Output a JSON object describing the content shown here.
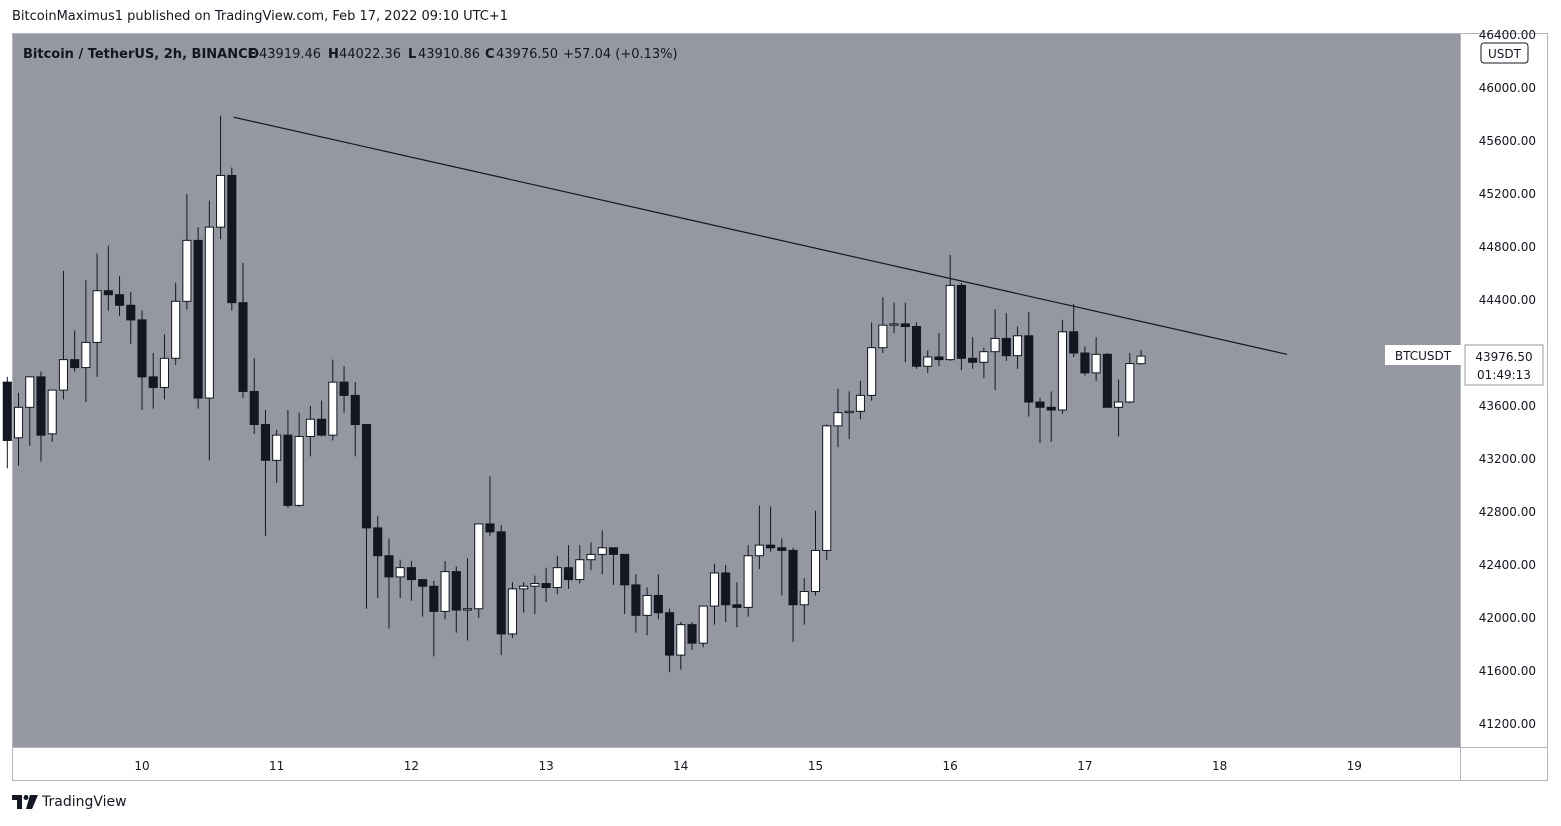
{
  "header": {
    "published_line": "BitcoinMaximus1 published on TradingView.com, Feb 17, 2022 09:10 UTC+1"
  },
  "legend": {
    "symbol": "Bitcoin / TetherUS, 2h, BINANCE",
    "o_label": "O",
    "o_value": "43919.46",
    "h_label": "H",
    "h_value": "44022.36",
    "l_label": "L",
    "l_value": "43910.86",
    "c_label": "C",
    "c_value": "43976.50",
    "change": "+57.04 (+0.13%)"
  },
  "price_axis": {
    "currency": "USDT",
    "labels": [
      "46400.00",
      "46000.00",
      "45600.00",
      "45200.00",
      "44800.00",
      "44400.00",
      "44000.00",
      "43600.00",
      "43200.00",
      "42800.00",
      "42400.00",
      "42000.00",
      "41600.00",
      "41200.00"
    ]
  },
  "ticker_tag": {
    "name": "BTCUSDT",
    "price": "43976.50",
    "countdown": "01:49:13"
  },
  "time_axis": {
    "labels": [
      "10",
      "11",
      "12",
      "13",
      "14",
      "15",
      "16",
      "17",
      "18",
      "19"
    ]
  },
  "footer": {
    "brand": "TradingView"
  },
  "colors": {
    "plot_background": "#9598a1",
    "up_candle": "#ffffff",
    "down_candle": "#131722",
    "trendline": "#131722",
    "axis_background": "#ffffff",
    "border": "#b2b5be"
  },
  "chart_data": {
    "type": "candlestick",
    "title": "Bitcoin / TetherUS, 2h, BINANCE",
    "ylim": [
      41000,
      46400
    ],
    "y_ticks": [
      46400,
      46000,
      45600,
      45200,
      44800,
      44400,
      44000,
      43600,
      43200,
      42800,
      42400,
      42000,
      41600,
      41200
    ],
    "x_ticks": [
      "10",
      "11",
      "12",
      "13",
      "14",
      "15",
      "16",
      "17",
      "18",
      "19"
    ],
    "start_day": 9.0,
    "bar_hours": 2,
    "candles": [
      {
        "o": 43780,
        "h": 43820,
        "l": 43130,
        "c": 43340
      },
      {
        "o": 43360,
        "h": 43700,
        "l": 43150,
        "c": 43590
      },
      {
        "o": 43590,
        "h": 43800,
        "l": 43300,
        "c": 43820
      },
      {
        "o": 43820,
        "h": 43860,
        "l": 43180,
        "c": 43380
      },
      {
        "o": 43390,
        "h": 43720,
        "l": 43330,
        "c": 43720
      },
      {
        "o": 43720,
        "h": 44620,
        "l": 43650,
        "c": 43950
      },
      {
        "o": 43950,
        "h": 44170,
        "l": 43860,
        "c": 43890
      },
      {
        "o": 43890,
        "h": 44550,
        "l": 43630,
        "c": 44080
      },
      {
        "o": 44080,
        "h": 44750,
        "l": 43820,
        "c": 44470
      },
      {
        "o": 44470,
        "h": 44810,
        "l": 44320,
        "c": 44440
      },
      {
        "o": 44440,
        "h": 44580,
        "l": 44280,
        "c": 44360
      },
      {
        "o": 44360,
        "h": 44460,
        "l": 44070,
        "c": 44250
      },
      {
        "o": 44250,
        "h": 44320,
        "l": 43570,
        "c": 43820
      },
      {
        "o": 43820,
        "h": 44000,
        "l": 43580,
        "c": 43740
      },
      {
        "o": 43740,
        "h": 44140,
        "l": 43650,
        "c": 43960
      },
      {
        "o": 43960,
        "h": 44530,
        "l": 43910,
        "c": 44390
      },
      {
        "o": 44390,
        "h": 45200,
        "l": 44330,
        "c": 44850
      },
      {
        "o": 44850,
        "h": 44950,
        "l": 43580,
        "c": 43660
      },
      {
        "o": 43660,
        "h": 45150,
        "l": 43190,
        "c": 44950
      },
      {
        "o": 44950,
        "h": 45790,
        "l": 44860,
        "c": 45340
      },
      {
        "o": 45340,
        "h": 45400,
        "l": 44320,
        "c": 44380
      },
      {
        "o": 44380,
        "h": 44680,
        "l": 43660,
        "c": 43710
      },
      {
        "o": 43710,
        "h": 43960,
        "l": 43390,
        "c": 43460
      },
      {
        "o": 43460,
        "h": 43570,
        "l": 42620,
        "c": 43190
      },
      {
        "o": 43190,
        "h": 43420,
        "l": 43020,
        "c": 43380
      },
      {
        "o": 43380,
        "h": 43570,
        "l": 42830,
        "c": 42850
      },
      {
        "o": 42850,
        "h": 43550,
        "l": 42840,
        "c": 43370
      },
      {
        "o": 43370,
        "h": 43600,
        "l": 43220,
        "c": 43500
      },
      {
        "o": 43500,
        "h": 43640,
        "l": 43370,
        "c": 43380
      },
      {
        "o": 43380,
        "h": 43950,
        "l": 43340,
        "c": 43780
      },
      {
        "o": 43780,
        "h": 43900,
        "l": 43550,
        "c": 43680
      },
      {
        "o": 43680,
        "h": 43780,
        "l": 43220,
        "c": 43460
      },
      {
        "o": 43460,
        "h": 43460,
        "l": 42070,
        "c": 42680
      },
      {
        "o": 42680,
        "h": 42770,
        "l": 42150,
        "c": 42470
      },
      {
        "o": 42470,
        "h": 42600,
        "l": 41920,
        "c": 42310
      },
      {
        "o": 42310,
        "h": 42440,
        "l": 42150,
        "c": 42380
      },
      {
        "o": 42380,
        "h": 42430,
        "l": 42130,
        "c": 42290
      },
      {
        "o": 42290,
        "h": 42290,
        "l": 42010,
        "c": 42240
      },
      {
        "o": 42240,
        "h": 42280,
        "l": 41710,
        "c": 42050
      },
      {
        "o": 42050,
        "h": 42430,
        "l": 41990,
        "c": 42350
      },
      {
        "o": 42350,
        "h": 42390,
        "l": 41890,
        "c": 42060
      },
      {
        "o": 42060,
        "h": 42450,
        "l": 41830,
        "c": 42070
      },
      {
        "o": 42070,
        "h": 42710,
        "l": 42000,
        "c": 42710
      },
      {
        "o": 42710,
        "h": 43070,
        "l": 42620,
        "c": 42650
      },
      {
        "o": 42650,
        "h": 42700,
        "l": 41720,
        "c": 41880
      },
      {
        "o": 41880,
        "h": 42270,
        "l": 41850,
        "c": 42220
      },
      {
        "o": 42220,
        "h": 42270,
        "l": 42040,
        "c": 42240
      },
      {
        "o": 42240,
        "h": 42320,
        "l": 42030,
        "c": 42260
      },
      {
        "o": 42260,
        "h": 42380,
        "l": 42120,
        "c": 42230
      },
      {
        "o": 42230,
        "h": 42470,
        "l": 42180,
        "c": 42380
      },
      {
        "o": 42380,
        "h": 42550,
        "l": 42220,
        "c": 42290
      },
      {
        "o": 42290,
        "h": 42550,
        "l": 42260,
        "c": 42440
      },
      {
        "o": 42440,
        "h": 42570,
        "l": 42360,
        "c": 42480
      },
      {
        "o": 42480,
        "h": 42660,
        "l": 42330,
        "c": 42530
      },
      {
        "o": 42530,
        "h": 42520,
        "l": 42250,
        "c": 42480
      },
      {
        "o": 42480,
        "h": 42480,
        "l": 42030,
        "c": 42250
      },
      {
        "o": 42250,
        "h": 42330,
        "l": 41890,
        "c": 42020
      },
      {
        "o": 42020,
        "h": 42230,
        "l": 41870,
        "c": 42170
      },
      {
        "o": 42170,
        "h": 42330,
        "l": 41990,
        "c": 42040
      },
      {
        "o": 42040,
        "h": 42070,
        "l": 41590,
        "c": 41720
      },
      {
        "o": 41720,
        "h": 41970,
        "l": 41610,
        "c": 41950
      },
      {
        "o": 41950,
        "h": 41970,
        "l": 41760,
        "c": 41810
      },
      {
        "o": 41810,
        "h": 42090,
        "l": 41780,
        "c": 42090
      },
      {
        "o": 42090,
        "h": 42410,
        "l": 41950,
        "c": 42340
      },
      {
        "o": 42340,
        "h": 42400,
        "l": 41970,
        "c": 42100
      },
      {
        "o": 42100,
        "h": 42270,
        "l": 41930,
        "c": 42080
      },
      {
        "o": 42080,
        "h": 42550,
        "l": 42010,
        "c": 42470
      },
      {
        "o": 42470,
        "h": 42850,
        "l": 42370,
        "c": 42550
      },
      {
        "o": 42550,
        "h": 42840,
        "l": 42500,
        "c": 42530
      },
      {
        "o": 42530,
        "h": 42600,
        "l": 42170,
        "c": 42510
      },
      {
        "o": 42510,
        "h": 42530,
        "l": 41820,
        "c": 42100
      },
      {
        "o": 42100,
        "h": 42300,
        "l": 41950,
        "c": 42200
      },
      {
        "o": 42200,
        "h": 42810,
        "l": 42170,
        "c": 42510
      },
      {
        "o": 42510,
        "h": 43460,
        "l": 42440,
        "c": 43450
      },
      {
        "o": 43450,
        "h": 43730,
        "l": 43290,
        "c": 43550
      },
      {
        "o": 43550,
        "h": 43710,
        "l": 43350,
        "c": 43560
      },
      {
        "o": 43560,
        "h": 43790,
        "l": 43500,
        "c": 43680
      },
      {
        "o": 43680,
        "h": 44230,
        "l": 43640,
        "c": 44040
      },
      {
        "o": 44040,
        "h": 44420,
        "l": 44000,
        "c": 44210
      },
      {
        "o": 44210,
        "h": 44380,
        "l": 44150,
        "c": 44220
      },
      {
        "o": 44220,
        "h": 44380,
        "l": 43930,
        "c": 44200
      },
      {
        "o": 44200,
        "h": 44230,
        "l": 43880,
        "c": 43900
      },
      {
        "o": 43900,
        "h": 44020,
        "l": 43850,
        "c": 43970
      },
      {
        "o": 43970,
        "h": 44150,
        "l": 43900,
        "c": 43950
      },
      {
        "o": 43950,
        "h": 44740,
        "l": 43940,
        "c": 44510
      },
      {
        "o": 44510,
        "h": 44530,
        "l": 43870,
        "c": 43960
      },
      {
        "o": 43960,
        "h": 44120,
        "l": 43880,
        "c": 43930
      },
      {
        "o": 43930,
        "h": 44040,
        "l": 43810,
        "c": 44010
      },
      {
        "o": 44010,
        "h": 44330,
        "l": 43720,
        "c": 44110
      },
      {
        "o": 44110,
        "h": 44300,
        "l": 43940,
        "c": 43980
      },
      {
        "o": 43980,
        "h": 44200,
        "l": 43880,
        "c": 44130
      },
      {
        "o": 44130,
        "h": 44310,
        "l": 43520,
        "c": 43630
      },
      {
        "o": 43630,
        "h": 43660,
        "l": 43320,
        "c": 43590
      },
      {
        "o": 43590,
        "h": 43710,
        "l": 43330,
        "c": 43570
      },
      {
        "o": 43570,
        "h": 44250,
        "l": 43540,
        "c": 44160
      },
      {
        "o": 44160,
        "h": 44370,
        "l": 43970,
        "c": 44000
      },
      {
        "o": 44000,
        "h": 44050,
        "l": 43830,
        "c": 43850
      },
      {
        "o": 43850,
        "h": 44120,
        "l": 43790,
        "c": 43990
      },
      {
        "o": 43990,
        "h": 44000,
        "l": 43590,
        "c": 43590
      },
      {
        "o": 43590,
        "h": 43800,
        "l": 43370,
        "c": 43630
      },
      {
        "o": 43630,
        "h": 44000,
        "l": 43620,
        "c": 43920
      },
      {
        "o": 43919.46,
        "h": 44022.36,
        "l": 43910.86,
        "c": 43976.5
      }
    ],
    "trendline": {
      "start": {
        "day": 10.68,
        "price": 45780
      },
      "end": {
        "day": 18.5,
        "price": 43990
      }
    },
    "current_price": 43976.5
  }
}
